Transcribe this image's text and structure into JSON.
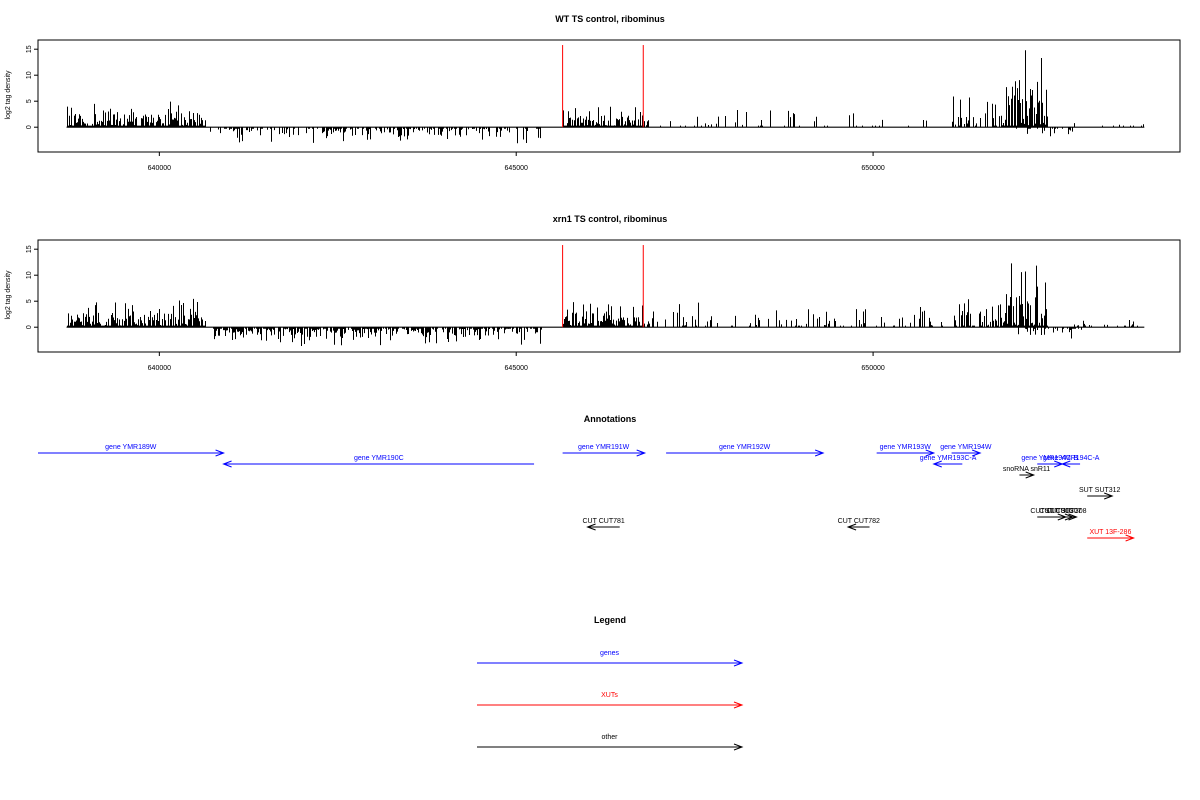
{
  "colors": {
    "genes": "#0000ff",
    "XUTs": "#ff0000",
    "other": "#000000",
    "marker": "#ff0000",
    "axis": "#000000"
  },
  "chart_data": [
    {
      "type": "bar",
      "title": "WT TS control, ribominus",
      "xlabel": "",
      "ylabel": "log2 tag density",
      "xlim": [
        638300,
        654300
      ],
      "ylim": [
        -4,
        16
      ],
      "yticks": [
        0,
        5,
        10,
        15
      ],
      "xticks": [
        640000,
        645000,
        650000
      ],
      "xtick_labels": [
        "640000",
        "645000",
        "650000"
      ],
      "markers_x": [
        645650,
        646780
      ],
      "segments": [
        {
          "x_start": 638700,
          "x_end": 640650,
          "sign": 1,
          "max": 5.5,
          "density": 1.0
        },
        {
          "x_start": 640650,
          "x_end": 645350,
          "sign": -1,
          "max": 3.5,
          "density": 0.5
        },
        {
          "x_start": 645650,
          "x_end": 646800,
          "sign": 1,
          "max": 4.5,
          "density": 1.0
        },
        {
          "x_start": 646800,
          "x_end": 651000,
          "sign": 1,
          "max": 4.5,
          "density": 0.15
        },
        {
          "x_start": 651100,
          "x_end": 651850,
          "sign": 1,
          "max": 6.5,
          "density": 0.6
        },
        {
          "x_start": 651850,
          "x_end": 652450,
          "sign": 1,
          "max": 15.5,
          "density": 1.0
        },
        {
          "x_start": 652000,
          "x_end": 652800,
          "sign": -1,
          "max": 3,
          "density": 0.3
        },
        {
          "x_start": 652800,
          "x_end": 653800,
          "sign": 1,
          "max": 1.5,
          "density": 0.1
        }
      ]
    },
    {
      "type": "bar",
      "title": "xrn1 TS control, ribominus",
      "xlabel": "",
      "ylabel": "log2 tag density",
      "xlim": [
        638300,
        654300
      ],
      "ylim": [
        -4,
        16
      ],
      "yticks": [
        0,
        5,
        10,
        15
      ],
      "xticks": [
        640000,
        645000,
        650000
      ],
      "xtick_labels": [
        "640000",
        "645000",
        "650000"
      ],
      "markers_x": [
        645650,
        646780
      ],
      "segments": [
        {
          "x_start": 638700,
          "x_end": 640650,
          "sign": 1,
          "max": 6.5,
          "density": 1.0
        },
        {
          "x_start": 640750,
          "x_end": 645350,
          "sign": -1,
          "max": 4,
          "density": 0.8
        },
        {
          "x_start": 645650,
          "x_end": 646800,
          "sign": 1,
          "max": 6,
          "density": 1.0
        },
        {
          "x_start": 646800,
          "x_end": 651000,
          "sign": 1,
          "max": 5,
          "density": 0.25
        },
        {
          "x_start": 651100,
          "x_end": 651850,
          "sign": 1,
          "max": 7,
          "density": 0.7
        },
        {
          "x_start": 651850,
          "x_end": 652450,
          "sign": 1,
          "max": 15.5,
          "density": 1.0
        },
        {
          "x_start": 652000,
          "x_end": 652950,
          "sign": -1,
          "max": 3.5,
          "density": 0.4
        },
        {
          "x_start": 652800,
          "x_end": 653800,
          "sign": 1,
          "max": 2,
          "density": 0.3
        }
      ]
    }
  ],
  "annotations": {
    "title": "Annotations",
    "features": [
      {
        "label": "gene YMR189W",
        "type": "genes",
        "start": 638300,
        "end": 640900,
        "strand": "+",
        "row": 0
      },
      {
        "label": "gene YMR190C",
        "type": "genes",
        "start": 640900,
        "end": 645250,
        "strand": "-",
        "row": 1
      },
      {
        "label": "gene YMR191W",
        "type": "genes",
        "start": 645650,
        "end": 646800,
        "strand": "+",
        "row": 0
      },
      {
        "label": "gene YMR192W",
        "type": "genes",
        "start": 647100,
        "end": 649300,
        "strand": "+",
        "row": 0
      },
      {
        "label": "gene YMR193W",
        "type": "genes",
        "start": 650050,
        "end": 650850,
        "strand": "+",
        "row": 0
      },
      {
        "label": "gene YMR194W",
        "type": "genes",
        "start": 651100,
        "end": 651500,
        "strand": "+",
        "row": 0
      },
      {
        "label": "gene YMR193C-A",
        "type": "genes",
        "start": 650850,
        "end": 651250,
        "strand": "-",
        "row": 1
      },
      {
        "label": "gene YMR194C-A",
        "type": "genes",
        "start": 652650,
        "end": 652900,
        "strand": "-",
        "row": 1
      },
      {
        "label": "gene YMR194C-B",
        "type": "genes",
        "start": 652300,
        "end": 652650,
        "strand": "+",
        "row": 1
      },
      {
        "label": "snoRNA snR11",
        "type": "other",
        "start": 652050,
        "end": 652250,
        "strand": "+",
        "row": 2
      },
      {
        "label": "SUT SUT312",
        "type": "other",
        "start": 653000,
        "end": 653350,
        "strand": "+",
        "row": 3
      },
      {
        "label": "CUT CUT306",
        "type": "other",
        "start": 652300,
        "end": 652700,
        "strand": "+",
        "row": 4
      },
      {
        "label": "CUT CUT307",
        "type": "other",
        "start": 652450,
        "end": 652800,
        "strand": "+",
        "row": 4
      },
      {
        "label": "SUT SUT308",
        "type": "other",
        "start": 652550,
        "end": 652850,
        "strand": "+",
        "row": 4
      },
      {
        "label": "CUT CUT781",
        "type": "other",
        "start": 646000,
        "end": 646450,
        "strand": "-",
        "row": 5
      },
      {
        "label": "CUT CUT782",
        "type": "other",
        "start": 649650,
        "end": 649950,
        "strand": "-",
        "row": 5
      },
      {
        "label": "XUT 13F-286",
        "type": "XUTs",
        "start": 653000,
        "end": 653650,
        "strand": "+",
        "row": 6
      }
    ]
  },
  "legend": {
    "title": "Legend",
    "items": [
      {
        "label": "genes",
        "type": "genes"
      },
      {
        "label": "XUTs",
        "type": "XUTs"
      },
      {
        "label": "other",
        "type": "other"
      }
    ]
  }
}
